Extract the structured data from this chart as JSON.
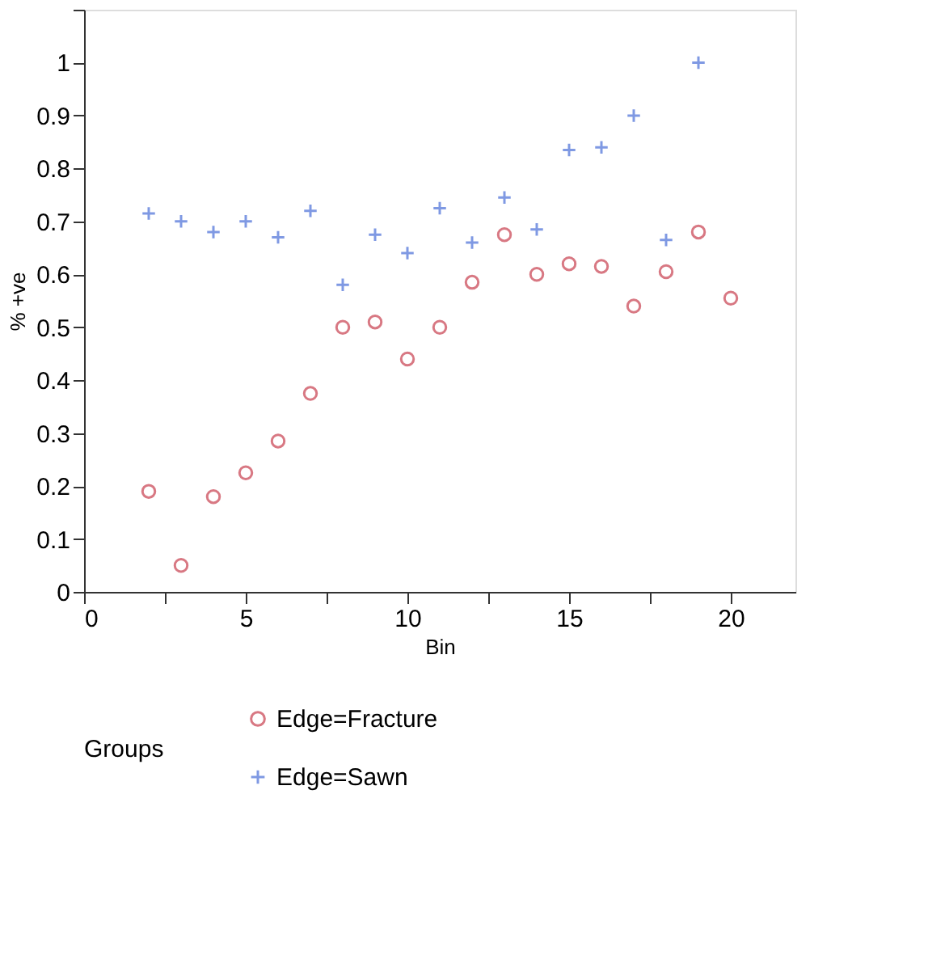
{
  "chart_data": {
    "type": "scatter",
    "xlabel": "Bin",
    "ylabel": "% +ve",
    "legend_title": "Groups",
    "legend": "bottom",
    "grid": false,
    "xlim": [
      0,
      22
    ],
    "xticks": [
      0,
      {
        "value": 2.5,
        "label": null
      },
      5,
      {
        "value": 7.5,
        "label": null
      },
      10,
      {
        "value": 12.5,
        "label": null
      },
      15,
      {
        "value": 17.5,
        "label": null
      },
      20
    ],
    "ylim": [
      0,
      1.1
    ],
    "yticks": [
      0,
      0.1,
      0.2,
      0.3,
      0.4,
      0.5,
      0.6,
      0.7,
      0.8,
      0.9,
      1,
      {
        "value": 1.1,
        "label": null
      }
    ],
    "series": [
      {
        "name": "Edge=Fracture",
        "color": "#c8404f",
        "marker": "circle",
        "x": [
          2,
          3,
          4,
          5,
          6,
          7,
          8,
          9,
          10,
          11,
          12,
          13,
          14,
          15,
          16,
          17,
          18,
          19,
          20
        ],
        "values": [
          0.19,
          0.05,
          0.18,
          0.225,
          0.285,
          0.375,
          0.5,
          0.51,
          0.44,
          0.5,
          0.585,
          0.675,
          0.6,
          0.62,
          0.615,
          0.54,
          0.605,
          0.68,
          0.555
        ]
      },
      {
        "name": "Edge=Sawn",
        "color": "#4a6fd8",
        "marker": "cross",
        "x": [
          2,
          3,
          4,
          5,
          6,
          7,
          8,
          9,
          10,
          11,
          12,
          13,
          14,
          15,
          16,
          17,
          18,
          19
        ],
        "values": [
          0.715,
          0.7,
          0.68,
          0.7,
          0.67,
          0.72,
          0.58,
          0.675,
          0.64,
          0.725,
          0.66,
          0.745,
          0.685,
          0.835,
          0.84,
          0.9,
          0.665,
          1.0
        ]
      }
    ]
  }
}
